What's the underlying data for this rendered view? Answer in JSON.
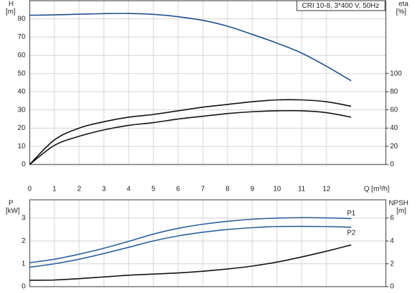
{
  "chart_data": [
    {
      "type": "line",
      "label": "CRI 10-8, 3*400 V, 50Hz",
      "y_label": "H",
      "y_unit": "[m]",
      "y2_label": "eta",
      "y2_unit": "[%]",
      "x_label": "Q [m³/h]",
      "x": [
        0,
        1,
        2,
        3,
        4,
        5,
        6,
        7,
        8,
        9,
        10,
        11,
        12,
        13
      ],
      "xlim": [
        0,
        14.4
      ],
      "xticks": [
        0,
        1,
        2,
        3,
        4,
        5,
        6,
        7,
        8,
        9,
        10,
        11,
        12
      ],
      "ylim": [
        0,
        90
      ],
      "yticks": [
        0,
        10,
        20,
        30,
        40,
        50,
        60,
        70,
        80
      ],
      "y2lim": [
        0,
        180
      ],
      "y2ticks": [
        0,
        20,
        40,
        60,
        80,
        100
      ],
      "grid": true,
      "series": [
        {
          "color": "#1f4e8c",
          "values": [
            82,
            82.2,
            82.6,
            82.9,
            83,
            82.5,
            81.2,
            79.2,
            76,
            71.5,
            66.7,
            61.2,
            54,
            46
          ]
        },
        {
          "color": "#111111",
          "axis": "y2",
          "values": [
            0,
            27,
            40,
            47,
            52,
            55,
            59,
            63,
            66,
            69,
            71,
            71,
            69,
            64
          ]
        },
        {
          "color": "#111111",
          "axis": "y2",
          "values": [
            0,
            21,
            31,
            38,
            43,
            46,
            50,
            53,
            56,
            58,
            59,
            59,
            57,
            52
          ]
        }
      ]
    },
    {
      "type": "line",
      "y_label": "P",
      "y_unit": "[kW]",
      "y2_label": "NPSH",
      "y2_unit": "[m]",
      "x": [
        0,
        1,
        2,
        3,
        4,
        5,
        6,
        7,
        8,
        9,
        10,
        11,
        12,
        13
      ],
      "xlim": [
        0,
        14.4
      ],
      "xticks": [
        0,
        1,
        2,
        3,
        4,
        5,
        6,
        7,
        8,
        9,
        10,
        11,
        12
      ],
      "ylim": [
        0,
        3.8
      ],
      "yticks": [
        0,
        1,
        2,
        3
      ],
      "y2lim": [
        0,
        7.6
      ],
      "y2ticks": [
        0,
        2,
        4,
        6
      ],
      "grid": true,
      "series": [
        {
          "name": "P1",
          "color": "#2b5f9e",
          "values": [
            1.05,
            1.2,
            1.42,
            1.68,
            1.98,
            2.3,
            2.55,
            2.73,
            2.86,
            2.95,
            3.0,
            3.02,
            3.01,
            2.98
          ]
        },
        {
          "name": "P2",
          "color": "#2b5f9e",
          "values": [
            0.85,
            1.0,
            1.2,
            1.45,
            1.72,
            2.0,
            2.22,
            2.38,
            2.5,
            2.58,
            2.63,
            2.64,
            2.63,
            2.6
          ]
        },
        {
          "color": "#111111",
          "axis": "y2",
          "values": [
            0.56,
            0.58,
            0.7,
            0.85,
            1.0,
            1.1,
            1.2,
            1.35,
            1.55,
            1.8,
            2.15,
            2.6,
            3.1,
            3.65
          ]
        }
      ]
    }
  ]
}
